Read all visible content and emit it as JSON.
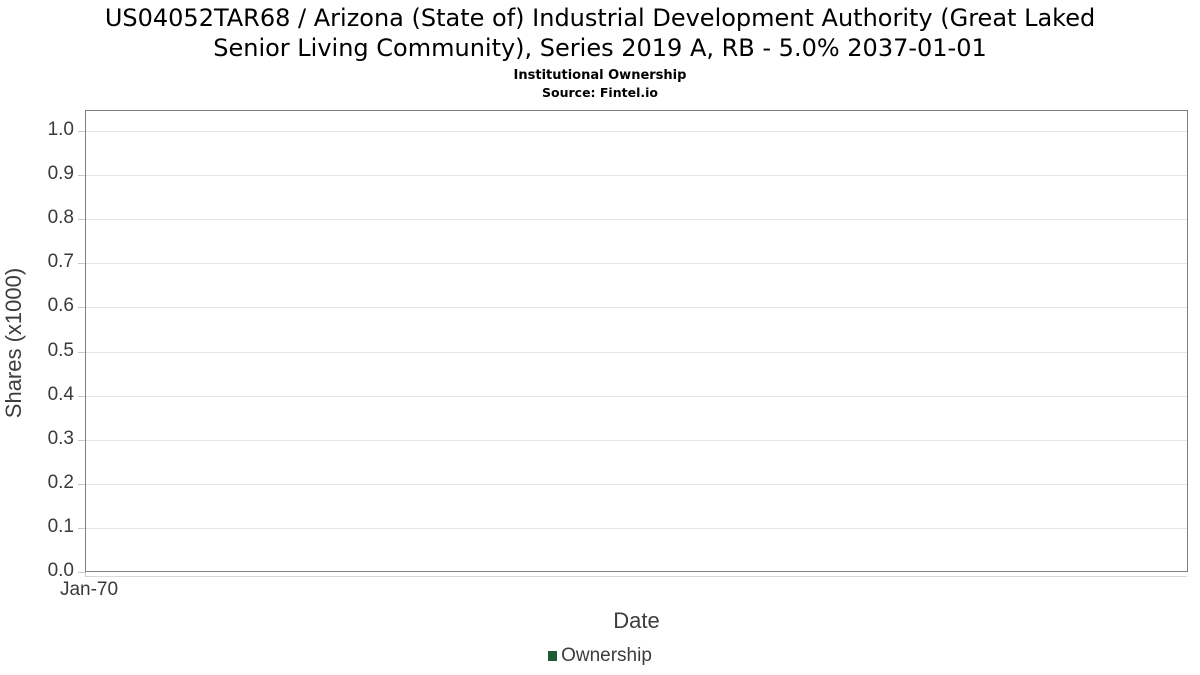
{
  "header": {
    "title_line1": "US04052TAR68 / Arizona (State of) Industrial Development Authority (Great Laked",
    "title_line2": "Senior Living Community), Series 2019 A, RB - 5.0% 2037-01-01",
    "subtitle": "Institutional Ownership",
    "source": "Source: Fintel.io"
  },
  "chart_data": {
    "type": "line",
    "title": "US04052TAR68 / Arizona (State of) Industrial Development Authority (Great Laked Senior Living Community), Series 2019 A, RB - 5.0% 2037-01-01",
    "subtitle": "Institutional Ownership",
    "source": "Source: Fintel.io",
    "xlabel": "Date",
    "ylabel": "Shares (x1000)",
    "x": [],
    "series": [
      {
        "name": "Ownership",
        "color": "#1e5b31",
        "values": []
      }
    ],
    "xticks": [
      "Jan-70"
    ],
    "ytick_labels": [
      "0.0",
      "0.1",
      "0.2",
      "0.3",
      "0.4",
      "0.5",
      "0.6",
      "0.7",
      "0.8",
      "0.9",
      "1.0"
    ],
    "ylim": [
      0.0,
      1.05
    ],
    "grid": true,
    "legend_position": "bottom",
    "notes": "empty plot area - no data points rendered"
  },
  "legend": {
    "items": [
      {
        "label": "Ownership",
        "color": "#1e5b31"
      }
    ]
  },
  "colors": {
    "grid": "#e6e6e6",
    "plot_border": "#7f7f7f",
    "axis_text": "#3a3a3a",
    "axis_title_text": "#3d3d3d",
    "tick_mark": "#c9c9c9",
    "sub_axis_line": "#d9d9d9",
    "legend_marker": "#1e5b31",
    "title_text": "#000000"
  }
}
